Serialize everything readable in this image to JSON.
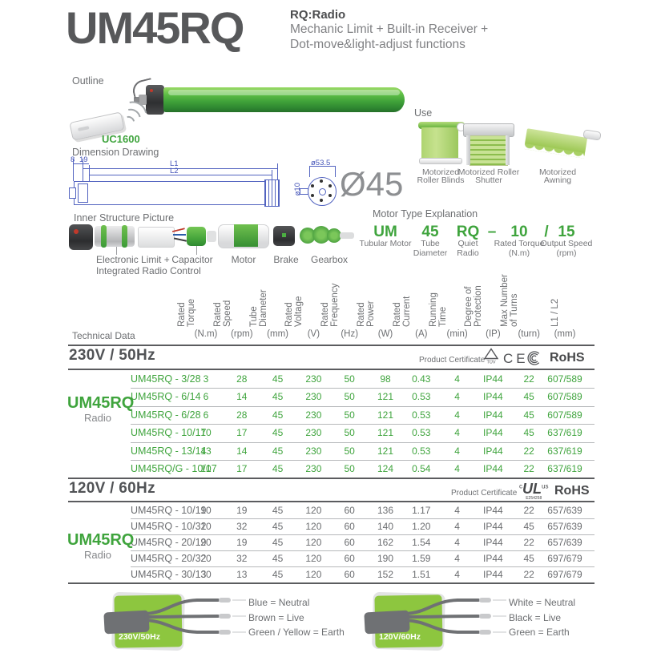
{
  "header": {
    "title": "UM45RQ",
    "code_label": "RQ:Radio",
    "desc_line1": "Mechanic Limit + Built-in Receiver +",
    "desc_line2": "Dot-move&light-adjust functions"
  },
  "outline": {
    "label": "Outline",
    "remote_label": "UC1600"
  },
  "dimension": {
    "label": "Dimension Drawing",
    "d8": "8",
    "d19": "19",
    "l1": "L1",
    "l2": "L2",
    "d535": "ø53.5",
    "d10": "ø10",
    "big": "Ø45"
  },
  "use": {
    "label": "Use",
    "items": [
      {
        "icon": "roller-blind",
        "label": "Motorized\nRoller Blinds"
      },
      {
        "icon": "roller-shutter",
        "label": "Motorized Roller\nShutter"
      },
      {
        "icon": "awning",
        "label": "Motorized\nAwning"
      }
    ]
  },
  "inner": {
    "label": "Inner Structure Picture",
    "parts": [
      "Electronic Limit +\nIntegrated Radio Control",
      "Capacitor",
      "Motor",
      "Brake",
      "Gearbox"
    ]
  },
  "motor_type": {
    "label": "Motor Type Explanation",
    "tokens": [
      {
        "code": "UM",
        "desc": "Tubular Motor"
      },
      {
        "code": "45",
        "desc": "Tube\nDiameter"
      },
      {
        "code": "RQ",
        "desc": "Quiet\nRadio"
      },
      {
        "code": "–",
        "desc": ""
      },
      {
        "code": "10",
        "desc": "Rated Torque\n(N.m)"
      },
      {
        "code": "/",
        "desc": ""
      },
      {
        "code": "15",
        "desc": "Output Speed\n(rpm)"
      }
    ]
  },
  "table": {
    "label": "Technical Data",
    "columns": [
      {
        "name": "Rated\nTorque",
        "unit": "(N.m)"
      },
      {
        "name": "Rated\nSpeed",
        "unit": "(rpm)"
      },
      {
        "name": "Tube\nDiameter",
        "unit": "(mm)"
      },
      {
        "name": "Rated\nVoltage",
        "unit": "(V)"
      },
      {
        "name": "Rated\nFrequency",
        "unit": "(Hz)"
      },
      {
        "name": "Rated\nPower",
        "unit": "(W)"
      },
      {
        "name": "Rated\nCurrent",
        "unit": "(A)"
      },
      {
        "name": "Running\nTime",
        "unit": "(min)"
      },
      {
        "name": "Degree of\nProtection",
        "unit": "(IP)"
      },
      {
        "name": "Max Number\nof Turns",
        "unit": "(turn)"
      },
      {
        "name": "L1 / L2",
        "unit": "(mm)"
      }
    ],
    "sections": [
      {
        "voltage_header": "230V / 50Hz",
        "cert_label": "Product Certificate",
        "certs": [
          {
            "type": "tuv",
            "text": "TÜV"
          },
          {
            "type": "ce",
            "text": "CE"
          },
          {
            "type": "ccc",
            "text": ""
          },
          {
            "type": "rohs",
            "text": "RoHS"
          }
        ],
        "group_label": "UM45RQ",
        "group_sub": "Radio",
        "green": true,
        "rows": [
          {
            "model": "UM45RQ - 3/28",
            "values": [
              "3",
              "28",
              "45",
              "230",
              "50",
              "98",
              "0.43",
              "4",
              "IP44",
              "22",
              "607/589"
            ]
          },
          {
            "model": "UM45RQ - 6/14",
            "values": [
              "6",
              "14",
              "45",
              "230",
              "50",
              "121",
              "0.53",
              "4",
              "IP44",
              "45",
              "607/589"
            ]
          },
          {
            "model": "UM45RQ - 6/28",
            "values": [
              "6",
              "28",
              "45",
              "230",
              "50",
              "121",
              "0.53",
              "4",
              "IP44",
              "45",
              "607/589"
            ]
          },
          {
            "model": "UM45RQ - 10/17",
            "values": [
              "10",
              "17",
              "45",
              "230",
              "50",
              "121",
              "0.53",
              "4",
              "IP44",
              "45",
              "637/619"
            ]
          },
          {
            "model": "UM45RQ - 13/14",
            "values": [
              "13",
              "14",
              "45",
              "230",
              "50",
              "121",
              "0.53",
              "4",
              "IP44",
              "22",
              "637/619"
            ]
          },
          {
            "model": "UM45RQ/G - 10/17",
            "values": [
              "10",
              "17",
              "45",
              "230",
              "50",
              "124",
              "0.54",
              "4",
              "IP44",
              "22",
              "637/619"
            ]
          }
        ]
      },
      {
        "voltage_header": "120V / 60Hz",
        "cert_label": "Product Certificate",
        "certs": [
          {
            "type": "cul",
            "text": "UL",
            "prefix": "c",
            "suffix": "us",
            "sub": "E254258"
          },
          {
            "type": "rohs",
            "text": "RoHS"
          }
        ],
        "group_label": "UM45RQ",
        "group_sub": "Radio",
        "green": false,
        "rows": [
          {
            "model": "UM45RQ - 10/19",
            "values": [
              "10",
              "19",
              "45",
              "120",
              "60",
              "136",
              "1.17",
              "4",
              "IP44",
              "22",
              "657/639"
            ]
          },
          {
            "model": "UM45RQ - 10/32",
            "values": [
              "10",
              "32",
              "45",
              "120",
              "60",
              "140",
              "1.20",
              "4",
              "IP44",
              "45",
              "657/639"
            ]
          },
          {
            "model": "UM45RQ - 20/19",
            "values": [
              "20",
              "19",
              "45",
              "120",
              "60",
              "162",
              "1.54",
              "4",
              "IP44",
              "22",
              "657/639"
            ]
          },
          {
            "model": "UM45RQ - 20/32",
            "values": [
              "20",
              "32",
              "45",
              "120",
              "60",
              "190",
              "1.59",
              "4",
              "IP44",
              "45",
              "697/679"
            ]
          },
          {
            "model": "UM45RQ - 30/13",
            "values": [
              "30",
              "13",
              "45",
              "120",
              "60",
              "152",
              "1.51",
              "4",
              "IP44",
              "22",
              "697/679"
            ]
          }
        ]
      }
    ]
  },
  "wiring": {
    "blocks": [
      {
        "voltage": "230V/50Hz",
        "wires": [
          "Blue = Neutral",
          "Brown = Live",
          "Green / Yellow = Earth"
        ]
      },
      {
        "voltage": "120V/60Hz",
        "wires": [
          "White = Neutral",
          "Black = Live",
          "Green = Earth"
        ]
      }
    ]
  },
  "colors": {
    "green": "#3fa43d",
    "dark": "#58595b",
    "gray": "#77787b",
    "blue": "#4353b8",
    "patch_green": "#8dc63f"
  }
}
